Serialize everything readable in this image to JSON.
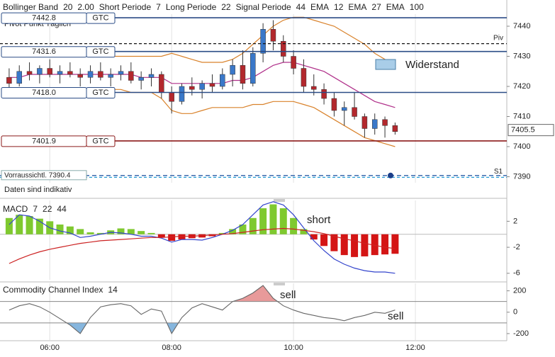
{
  "chart_data": [
    {
      "type": "candlestick",
      "legend": [
        {
          "text": "Bollinger Band",
          "color": "#333333"
        },
        {
          "text": "20",
          "color": "#d9822b"
        },
        {
          "text": "2.00",
          "color": "#d9822b"
        },
        {
          "text": "Short Periode",
          "color": "#333333"
        },
        {
          "text": "7",
          "color": "#333333"
        },
        {
          "text": "Long Periode",
          "color": "#333333"
        },
        {
          "text": "22",
          "color": "#333333"
        },
        {
          "text": "Signal Periode",
          "color": "#333333"
        },
        {
          "text": "44",
          "color": "#333333"
        },
        {
          "text": "EMA",
          "color": "#333333"
        },
        {
          "text": "12",
          "color": "#b0308a"
        },
        {
          "text": "EMA",
          "color": "#333333"
        },
        {
          "text": "27",
          "color": "#2a8f8f"
        },
        {
          "text": "EMA",
          "color": "#333333"
        },
        {
          "text": "100",
          "color": "#b5651d"
        }
      ],
      "subtitle": "Pivot Punkt Täglich",
      "note": "Daten sind indikativ",
      "x": [
        320,
        330,
        340,
        350,
        360,
        370,
        380,
        390,
        400,
        410,
        420,
        430,
        440,
        450,
        460,
        470,
        480,
        490,
        500,
        510,
        520,
        530,
        540,
        550,
        560,
        570,
        580,
        590,
        600,
        610,
        620,
        630,
        640,
        650,
        660,
        670,
        680,
        690,
        700
      ],
      "open": [
        7423,
        7421,
        7425,
        7424,
        7426,
        7424,
        7425,
        7424,
        7423,
        7425,
        7423,
        7424,
        7425,
        7422,
        7423,
        7424,
        7418,
        7415,
        7420,
        7419,
        7421,
        7420,
        7424,
        7427,
        7421,
        7431,
        7439,
        7435,
        7430,
        7426,
        7420,
        7419,
        7416,
        7412,
        7413,
        7410,
        7406,
        7409,
        7407
      ],
      "high": [
        7426,
        7427,
        7428,
        7427,
        7429,
        7427,
        7428,
        7426,
        7427,
        7428,
        7426,
        7427,
        7428,
        7425,
        7426,
        7425,
        7420,
        7421,
        7423,
        7422,
        7424,
        7426,
        7429,
        7432,
        7433,
        7441,
        7442,
        7437,
        7432,
        7429,
        7424,
        7421,
        7418,
        7415,
        7418,
        7411,
        7411,
        7410,
        7408
      ],
      "low": [
        7419,
        7420,
        7422,
        7421,
        7423,
        7421,
        7423,
        7420,
        7421,
        7422,
        7420,
        7422,
        7421,
        7419,
        7420,
        7416,
        7411,
        7414,
        7417,
        7416,
        7418,
        7419,
        7420,
        7419,
        7420,
        7428,
        7432,
        7428,
        7424,
        7418,
        7417,
        7414,
        7410,
        7407,
        7409,
        7403,
        7404,
        7403,
        7404
      ],
      "close": [
        7421,
        7425,
        7424,
        7426,
        7424,
        7425,
        7424,
        7423,
        7425,
        7423,
        7424,
        7425,
        7422,
        7423,
        7424,
        7418,
        7415,
        7420,
        7419,
        7421,
        7420,
        7424,
        7427,
        7421,
        7431,
        7439,
        7435,
        7430,
        7426,
        7420,
        7419,
        7416,
        7412,
        7413,
        7410,
        7406,
        7409,
        7407,
        7405
      ],
      "up_color": "#3a78c9",
      "down_color": "#b3282d",
      "series": [
        {
          "color": "#d9822b",
          "values": [
            7431,
            7431,
            7432,
            7432,
            7431,
            7431,
            7430,
            7430,
            7431,
            7431,
            7430,
            7430,
            7430,
            7430,
            7430,
            7430,
            7431,
            7430,
            7429,
            7428,
            7428,
            7428,
            7429,
            7431,
            7434,
            7437,
            7440,
            7442,
            7443,
            7443,
            7442,
            7441,
            7440,
            7438,
            7436,
            7434,
            7431,
            7429,
            7428
          ]
        },
        {
          "color": "#d9822b",
          "values": [
            7418,
            7418,
            7418,
            7419,
            7419,
            7419,
            7419,
            7418,
            7418,
            7419,
            7419,
            7419,
            7418,
            7418,
            7418,
            7416,
            7412,
            7411,
            7411,
            7412,
            7413,
            7413,
            7413,
            7413,
            7414,
            7414,
            7415,
            7415,
            7415,
            7414,
            7413,
            7411,
            7409,
            7407,
            7405,
            7403,
            7402,
            7401,
            7400
          ]
        },
        {
          "color": "#b0308a",
          "values": [
            7423,
            7423,
            7424,
            7424,
            7424,
            7424,
            7424,
            7424,
            7424,
            7424,
            7424,
            7424,
            7424,
            7423,
            7423,
            7423,
            7421,
            7421,
            7421,
            7421,
            7421,
            7421,
            7422,
            7422,
            7423,
            7425,
            7427,
            7428,
            7428,
            7427,
            7426,
            7425,
            7423,
            7421,
            7419,
            7417,
            7415,
            7414,
            7413
          ]
        }
      ],
      "orders": [
        {
          "value": 7442.8,
          "label": "7442.8",
          "tag": "GTC",
          "color": "#2b4c86",
          "style": "solid"
        },
        {
          "value": 7431.6,
          "label": "7431.6",
          "tag": "GTC",
          "color": "#2b4c86",
          "style": "solid"
        },
        {
          "value": 7418,
          "label": "7418.0",
          "tag": "GTC",
          "color": "#2b4c86",
          "style": "solid"
        },
        {
          "value": 7401.9,
          "label": "7401.9",
          "tag": "GTC",
          "color": "#8b1a1a",
          "style": "solid"
        },
        {
          "value": 7390.4,
          "label": "Vorraussichtl. 7390.4",
          "color": "#2b5ea8",
          "style": "dashed"
        }
      ],
      "pivots": [
        {
          "label": "Piv",
          "value": 7434.2,
          "color": "#111111"
        },
        {
          "label": "S1",
          "value": 7389.8,
          "color": "#2a9fd6"
        }
      ],
      "last_price": {
        "value": 7405.5,
        "label": "7405.5"
      },
      "annotations": [
        {
          "text": "Widerstand"
        }
      ],
      "xlim": [
        311,
        810
      ],
      "xticks": [
        {
          "value": 360,
          "label": "06:00"
        },
        {
          "value": 480,
          "label": "08:00"
        },
        {
          "value": 600,
          "label": "10:00"
        },
        {
          "value": 720,
          "label": "12:00"
        }
      ],
      "ylim": [
        7388,
        7444
      ],
      "yticks": [
        7390,
        7400,
        7410,
        7420,
        7430,
        7440
      ]
    },
    {
      "type": "macd",
      "legend": [
        {
          "text": "MACD",
          "color": "#333333"
        },
        {
          "text": "7",
          "color": "#cc2222"
        },
        {
          "text": "22",
          "color": "#d9822b"
        },
        {
          "text": "44",
          "color": "#cc2222"
        }
      ],
      "histogram": {
        "pos_color": "#7fc92f",
        "neg_color": "#d41515",
        "values": [
          2.5,
          3.0,
          2.8,
          2.4,
          2.0,
          1.5,
          1.2,
          0.8,
          0.3,
          0.2,
          0.6,
          0.9,
          0.8,
          0.5,
          0.2,
          -0.5,
          -1.0,
          -0.8,
          -0.6,
          -0.5,
          -0.3,
          0.2,
          0.8,
          1.5,
          2.5,
          4.0,
          4.6,
          4.0,
          2.5,
          0.8,
          -0.8,
          -1.8,
          -2.6,
          -3.2,
          -3.5,
          -3.4,
          -3.2,
          -3.1,
          -3.0
        ]
      },
      "series": [
        {
          "color": "#3344cc",
          "values": [
            1.5,
            3.0,
            2.8,
            2.0,
            1.0,
            0.5,
            0.2,
            -0.5,
            -0.3,
            0.0,
            0.3,
            0.2,
            0.0,
            -0.3,
            -0.3,
            -0.6,
            -1.2,
            -0.8,
            -0.8,
            -0.9,
            -0.5,
            0.0,
            0.6,
            1.5,
            3.0,
            4.5,
            5.0,
            4.5,
            3.0,
            1.0,
            -1.0,
            -2.5,
            -3.8,
            -4.6,
            -5.2,
            -5.6,
            -5.8,
            -5.8,
            -6.0
          ]
        },
        {
          "color": "#cc2222",
          "values": [
            -4.5,
            -3.8,
            -3.2,
            -2.7,
            -2.3,
            -2.0,
            -1.7,
            -1.4,
            -1.2,
            -1.0,
            -0.9,
            -0.8,
            -0.7,
            -0.6,
            -0.5,
            -0.5,
            -0.4,
            -0.3,
            -0.3,
            -0.2,
            -0.1,
            0.0,
            0.1,
            0.3,
            0.5,
            0.7,
            0.8,
            0.9,
            0.8,
            0.6,
            0.4,
            0.1,
            -0.3,
            -0.7,
            -1.0,
            -1.4,
            -1.7,
            -2.0,
            -2.2
          ]
        }
      ],
      "annotations": [
        {
          "text": "short"
        }
      ],
      "ylim": [
        -7,
        5.2
      ],
      "yticks": [
        2,
        -2,
        -6
      ]
    },
    {
      "type": "cci",
      "legend": [
        {
          "text": "Commodity Channel Index",
          "color": "#333333"
        },
        {
          "text": "14",
          "color": "#333333"
        }
      ],
      "color": "#666666",
      "upper_fill": "#e89a9a",
      "lower_fill": "#86b6de",
      "levels": [
        100,
        -100
      ],
      "values": [
        20,
        60,
        80,
        50,
        0,
        -60,
        -120,
        -200,
        -50,
        50,
        70,
        80,
        60,
        -20,
        30,
        10,
        -200,
        -50,
        40,
        80,
        50,
        20,
        100,
        130,
        180,
        250,
        130,
        60,
        20,
        -10,
        -30,
        -50,
        -60,
        -80,
        -50,
        -30,
        0,
        -10,
        20
      ],
      "annotations": [
        {
          "text": "sell"
        },
        {
          "text": "sell"
        }
      ],
      "ylim": [
        -260,
        270
      ],
      "yticks": [
        200,
        0,
        -200
      ]
    }
  ]
}
